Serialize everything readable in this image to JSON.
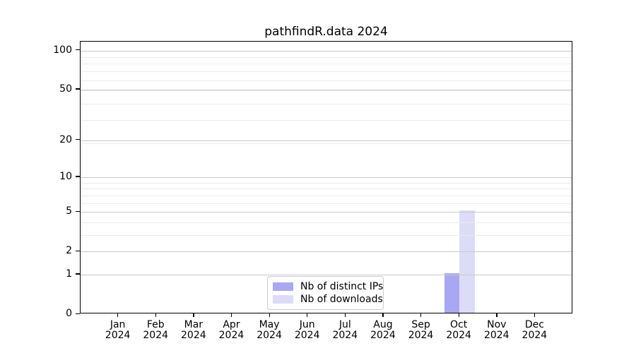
{
  "title": "pathfindR.data 2024",
  "chart_data": {
    "type": "bar",
    "title": "pathfindR.data 2024",
    "scale": "log10(1+x)",
    "grid": true,
    "legend_position": "lower center",
    "ylim": [
      0,
      117
    ],
    "y_ticks": [
      0,
      1,
      2,
      5,
      10,
      20,
      50,
      100
    ],
    "y_minor_gridlines": [
      3,
      4,
      6,
      7,
      8,
      9,
      19,
      29,
      39,
      49,
      59,
      69,
      79,
      89
    ],
    "categories": [
      {
        "month": "Jan",
        "year": "2024"
      },
      {
        "month": "Feb",
        "year": "2024"
      },
      {
        "month": "Mar",
        "year": "2024"
      },
      {
        "month": "Apr",
        "year": "2024"
      },
      {
        "month": "May",
        "year": "2024"
      },
      {
        "month": "Jun",
        "year": "2024"
      },
      {
        "month": "Jul",
        "year": "2024"
      },
      {
        "month": "Aug",
        "year": "2024"
      },
      {
        "month": "Sep",
        "year": "2024"
      },
      {
        "month": "Oct",
        "year": "2024"
      },
      {
        "month": "Nov",
        "year": "2024"
      },
      {
        "month": "Dec",
        "year": "2024"
      }
    ],
    "series": [
      {
        "name": "Nb of distinct IPs",
        "color": "#a8a8f2",
        "values": [
          0,
          0,
          0,
          0,
          0,
          0,
          0,
          0,
          0,
          1,
          0,
          0
        ]
      },
      {
        "name": "Nb of downloads",
        "color": "#dcdcf8",
        "values": [
          0,
          0,
          0,
          0,
          0,
          0,
          0,
          0,
          0,
          5,
          0,
          0
        ]
      }
    ]
  },
  "colors": {
    "background": "#ffffff",
    "axis": "#000000",
    "grid_major": "#c9c9c9",
    "grid_minor": "#ebebeb",
    "legend_border": "#cccccc"
  }
}
